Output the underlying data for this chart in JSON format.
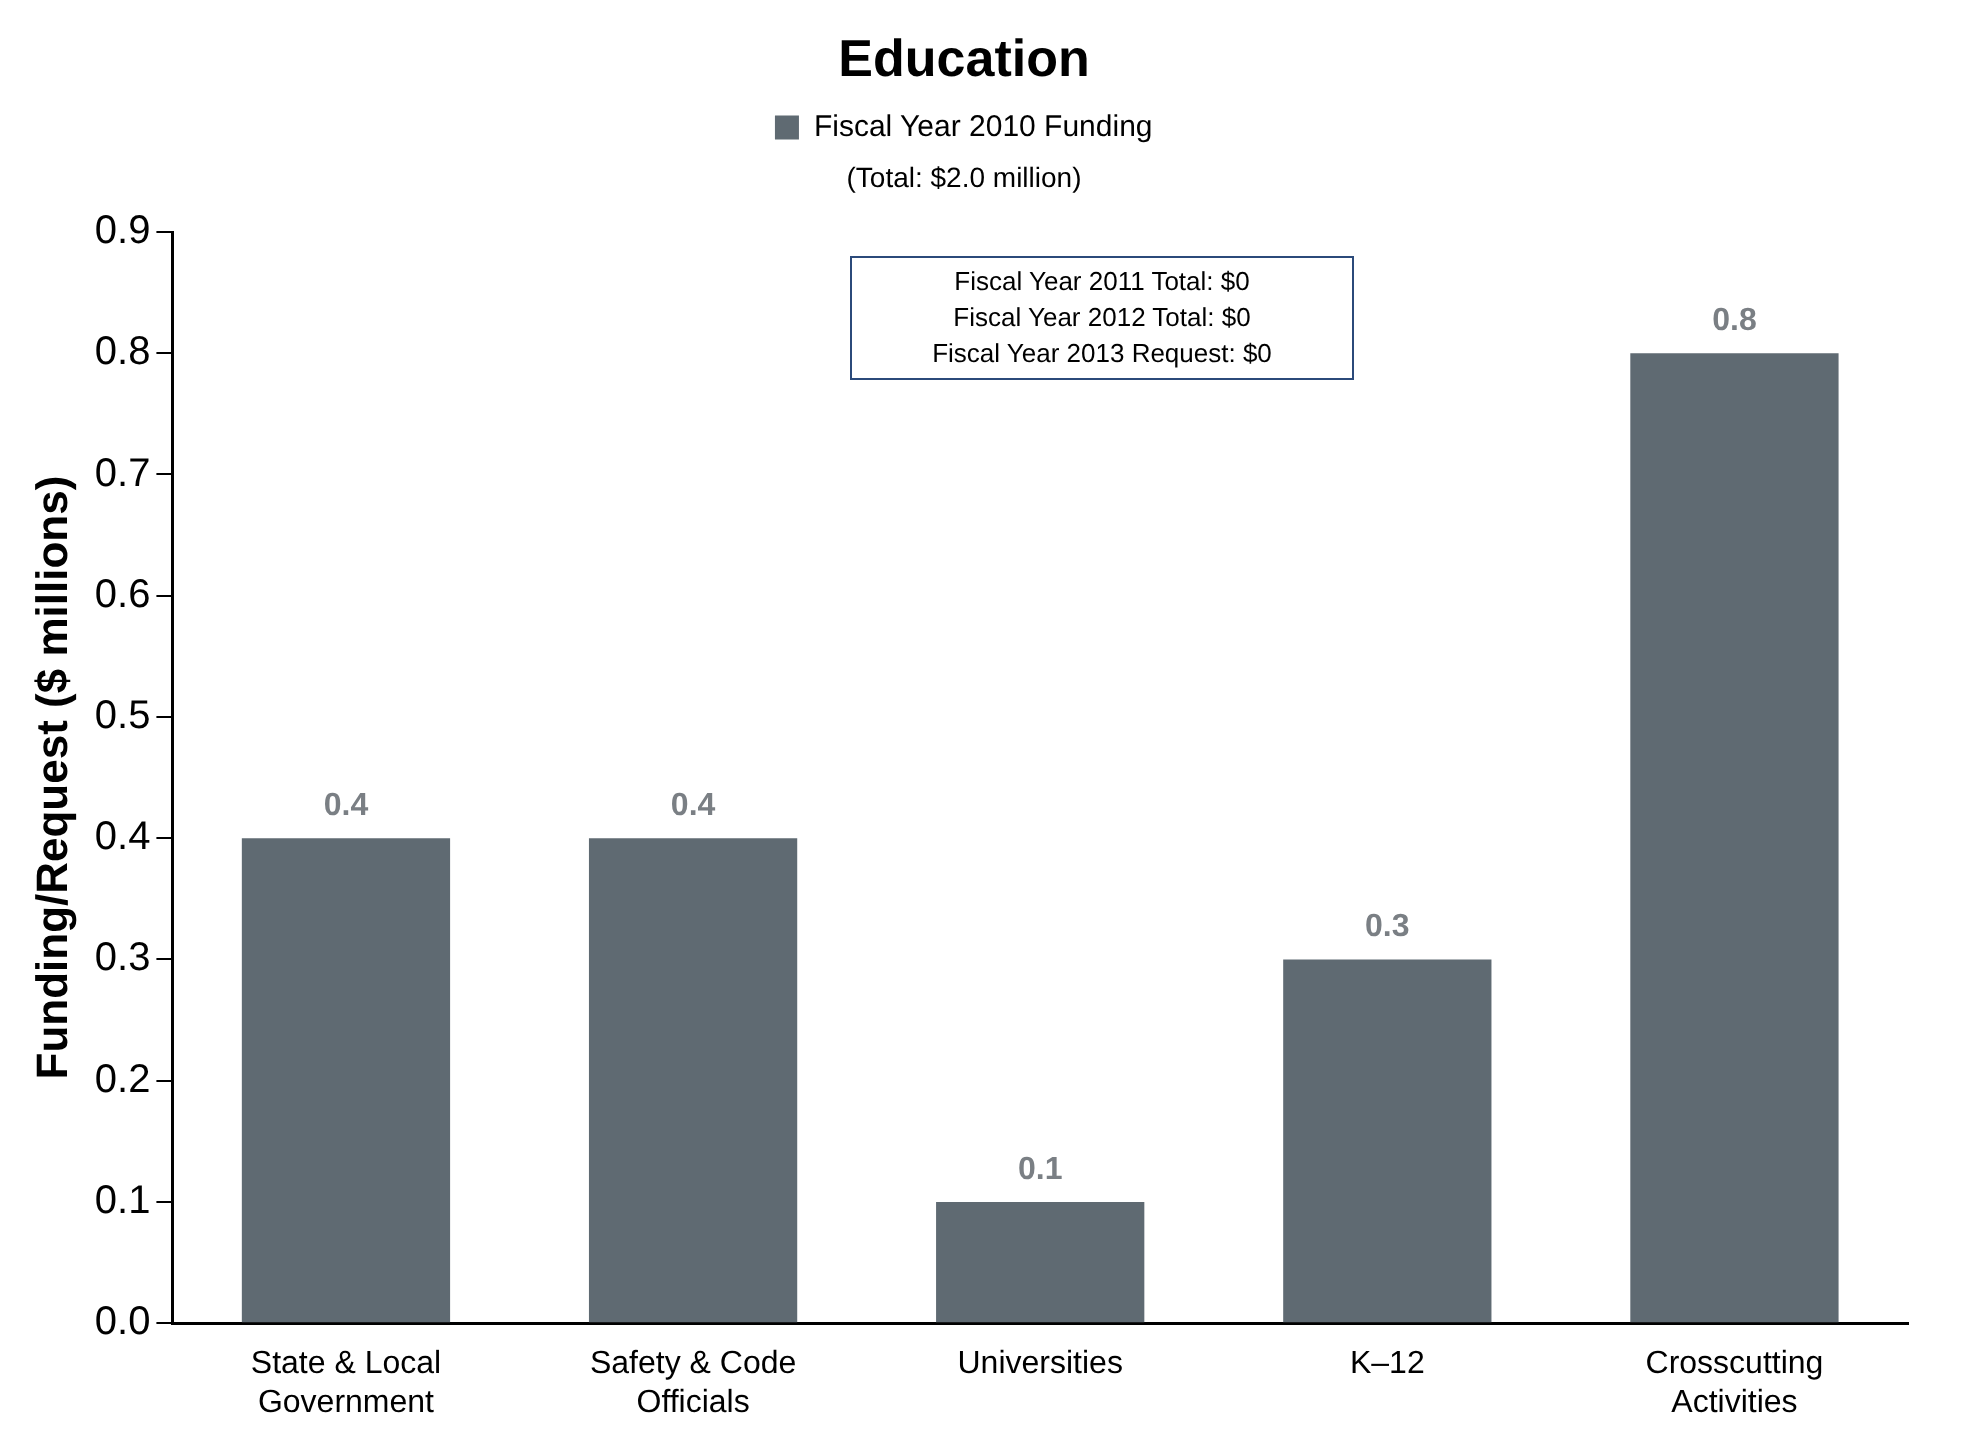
{
  "chart_data": {
    "type": "bar",
    "title": "Education",
    "subtitle": "(Total: $2.0 million)",
    "ylabel": "Funding/Request ($ millions)",
    "categories": [
      "State & Local Government",
      "Safety & Code Officials",
      "Universities",
      "K–12",
      "Crosscutting Activities"
    ],
    "series": [
      {
        "name": "Fiscal Year 2010 Funding",
        "color": "#5f6a72",
        "values": [
          0.4,
          0.4,
          0.1,
          0.3,
          0.8
        ]
      }
    ],
    "ylim": [
      0,
      0.9
    ],
    "yticks": [
      {
        "value": 0,
        "label": "0.0"
      },
      0.1,
      0.2,
      0.3,
      0.4,
      0.5,
      0.6,
      0.7,
      0.8,
      0.9
    ],
    "grid": false,
    "legend": "top",
    "data_labels": true,
    "annotations": [
      "Fiscal Year 2011 Total: $0",
      "Fiscal Year 2012 Total: $0",
      "Fiscal Year 2013 Request: $0"
    ]
  }
}
